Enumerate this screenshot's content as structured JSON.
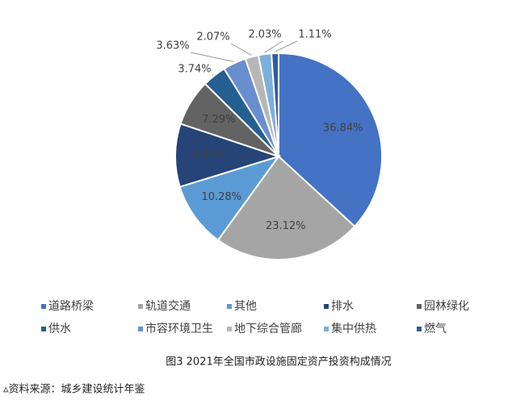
{
  "chart_data": {
    "type": "pie",
    "title": "图3 2021年全国市政设施固定资产投资构成情况",
    "source": "▵资料来源：城乡建设统计年鉴",
    "categories": [
      "道路桥梁",
      "轨道交通",
      "其他",
      "排水",
      "园林绿化",
      "供水",
      "市容环境卫生",
      "地下综合管廊",
      "集中供热",
      "燃气"
    ],
    "values": [
      36.84,
      23.12,
      10.28,
      9.89,
      7.29,
      3.74,
      3.63,
      2.07,
      2.03,
      1.11
    ],
    "value_labels": [
      "36.84%",
      "23.12%",
      "10.28%",
      "9.89%",
      "7.29%",
      "3.74%",
      "3.63%",
      "2.07%",
      "2.03%",
      "1.11%"
    ],
    "colors": [
      "#4472c4",
      "#a5a5a5",
      "#5b9bd5",
      "#264478",
      "#636363",
      "#255e91",
      "#698ed0",
      "#b7b7b7",
      "#7cafdd",
      "#335aa1"
    ],
    "legend": "bottom"
  }
}
